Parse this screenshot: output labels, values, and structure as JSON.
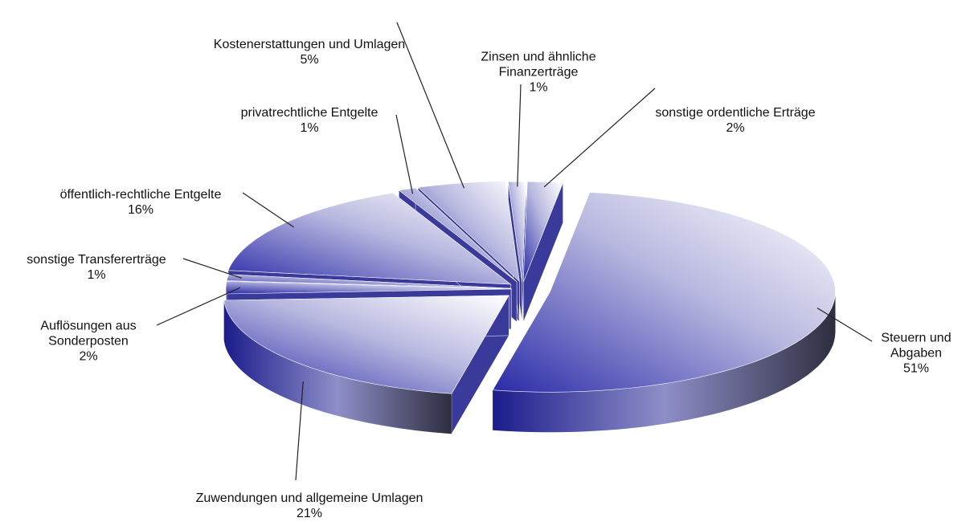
{
  "chart_data": {
    "type": "pie",
    "categories": [
      "Steuern und Abgaben",
      "Zuwendungen und allgemeine Umlagen",
      "Auflösungen aus Sonderposten",
      "sonstige Transfererträge",
      "öffentlich-rechtliche Entgelte",
      "privatrechtliche Entgelte",
      "Kostenerstattungen und Umlagen",
      "Zinsen und ähnliche Finanzerträge",
      "sonstige ordentliche Erträge"
    ],
    "values": [
      51,
      21,
      2,
      1,
      16,
      1,
      5,
      1,
      2
    ],
    "value_labels": [
      "51%",
      "21%",
      "2%",
      "1%",
      "16%",
      "1%",
      "5%",
      "1%",
      "2%"
    ],
    "color": "#2a2aa8"
  }
}
